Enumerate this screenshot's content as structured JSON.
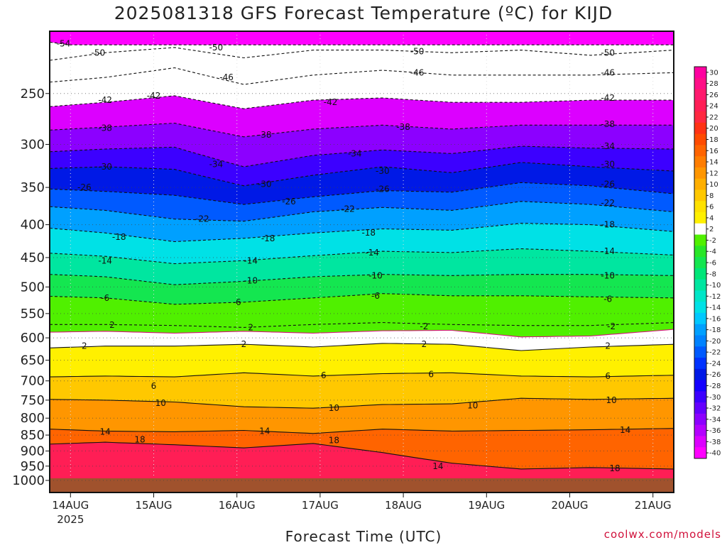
{
  "chart_data": {
    "type": "heatmap",
    "title": "2025081318 GFS Forecast Temperature (ºC) for KIJD",
    "xlabel": "Forecast Time (UTC)",
    "credit": "coolwx.com/models",
    "x_ticks": [
      "14AUG",
      "15AUG",
      "16AUG",
      "17AUG",
      "18AUG",
      "19AUG",
      "20AUG",
      "21AUG"
    ],
    "x_year": "2025",
    "x_range_hours": [
      -6,
      174
    ],
    "y_ticks": [
      250,
      300,
      350,
      400,
      450,
      500,
      550,
      600,
      650,
      700,
      750,
      800,
      850,
      900,
      950,
      1000
    ],
    "y_scale": "log pressure (hPa)",
    "y_range": [
      200,
      1000
    ],
    "grid": true,
    "colorbar_levels": [
      30,
      28,
      26,
      24,
      22,
      20,
      18,
      16,
      14,
      12,
      10,
      8,
      6,
      4,
      2,
      -2,
      -4,
      -6,
      -8,
      -10,
      -12,
      -14,
      -16,
      -18,
      -20,
      -22,
      -24,
      -26,
      -28,
      -30,
      -32,
      -34,
      -36,
      -38,
      -40
    ],
    "colorbar_colors": [
      "#ff00a0",
      "#ff0f87",
      "#ff1a6e",
      "#ff1e55",
      "#ff2841",
      "#ff3214",
      "#ff4b00",
      "#ff6400",
      "#ff7d00",
      "#ff9600",
      "#ffaf00",
      "#ffc800",
      "#ffe100",
      "#fff000",
      "#ffffff",
      "#50f000",
      "#28e628",
      "#14e650",
      "#00e678",
      "#00e6a0",
      "#00e6c8",
      "#00e1e6",
      "#00c8ff",
      "#00a0ff",
      "#0082ff",
      "#005aff",
      "#0032ff",
      "#0019e6",
      "#1400ff",
      "#3c00ff",
      "#6400ff",
      "#8c00ff",
      "#b400ff",
      "#dc00ff",
      "#ff00ff"
    ],
    "series": [
      {
        "level": -54,
        "x": [
          -6,
          0
        ],
        "y": [
          208,
          210
        ]
      },
      {
        "level": -50,
        "x": [
          -6,
          10,
          30,
          50,
          70,
          90,
          110,
          130,
          150,
          174
        ],
        "y": [
          222,
          216,
          212,
          220,
          214,
          214,
          216,
          214,
          218,
          214
        ]
      },
      {
        "level": -46,
        "x": [
          -6,
          10,
          30,
          50,
          70,
          90,
          110,
          130,
          150,
          174
        ],
        "y": [
          240,
          236,
          228,
          242,
          234,
          230,
          234,
          234,
          234,
          232
        ]
      },
      {
        "level": -42,
        "x": [
          -6,
          10,
          30,
          50,
          70,
          90,
          110,
          130,
          150,
          174
        ],
        "y": [
          262,
          258,
          252,
          264,
          256,
          254,
          258,
          258,
          256,
          256
        ]
      },
      {
        "level": -38,
        "x": [
          -6,
          10,
          30,
          50,
          70,
          90,
          110,
          130,
          150,
          174
        ],
        "y": [
          285,
          282,
          278,
          292,
          284,
          280,
          284,
          280,
          280,
          280
        ]
      },
      {
        "level": -34,
        "x": [
          -6,
          10,
          30,
          50,
          70,
          90,
          110,
          130,
          150,
          174
        ],
        "y": [
          308,
          305,
          303,
          325,
          312,
          306,
          310,
          302,
          304,
          305
        ]
      },
      {
        "level": -30,
        "x": [
          -6,
          10,
          30,
          50,
          70,
          90,
          110,
          130,
          150,
          174
        ],
        "y": [
          327,
          325,
          328,
          348,
          335,
          325,
          332,
          320,
          325,
          330
        ]
      },
      {
        "level": -26,
        "x": [
          -6,
          10,
          30,
          50,
          70,
          90,
          110,
          130,
          150,
          174
        ],
        "y": [
          352,
          355,
          360,
          372,
          362,
          354,
          356,
          344,
          348,
          358
        ]
      },
      {
        "level": -22,
        "x": [
          -6,
          10,
          30,
          50,
          70,
          90,
          110,
          130,
          150,
          174
        ],
        "y": [
          375,
          380,
          392,
          395,
          382,
          376,
          380,
          368,
          372,
          382
        ]
      },
      {
        "level": -18,
        "x": [
          -6,
          10,
          30,
          50,
          70,
          90,
          110,
          130,
          150,
          174
        ],
        "y": [
          405,
          412,
          425,
          420,
          412,
          406,
          408,
          398,
          400,
          410
        ]
      },
      {
        "level": -14,
        "x": [
          -6,
          10,
          30,
          50,
          70,
          90,
          110,
          130,
          150,
          174
        ],
        "y": [
          443,
          448,
          460,
          455,
          447,
          440,
          442,
          436,
          440,
          446
        ]
      },
      {
        "level": -10,
        "x": [
          -6,
          10,
          30,
          50,
          70,
          90,
          110,
          130,
          150,
          174
        ],
        "y": [
          478,
          482,
          496,
          490,
          482,
          478,
          480,
          478,
          478,
          480
        ]
      },
      {
        "level": -6,
        "x": [
          -6,
          10,
          30,
          50,
          70,
          90,
          110,
          130,
          150,
          174
        ],
        "y": [
          517,
          520,
          532,
          528,
          520,
          512,
          516,
          516,
          518,
          520
        ]
      },
      {
        "level": -2,
        "x": [
          -6,
          10,
          30,
          50,
          70,
          90,
          110,
          130,
          150,
          174
        ],
        "y": [
          572,
          572,
          574,
          578,
          572,
          568,
          572,
          574,
          574,
          568
        ]
      },
      {
        "level": 0,
        "x": [
          -6,
          10,
          30,
          50,
          70,
          90,
          110,
          130,
          150,
          174
        ],
        "y": [
          588,
          586,
          590,
          586,
          590,
          585,
          584,
          598,
          596,
          582
        ]
      },
      {
        "level": 2,
        "x": [
          -6,
          10,
          30,
          50,
          70,
          90,
          110,
          130,
          150,
          174
        ],
        "y": [
          622,
          618,
          618,
          614,
          620,
          612,
          614,
          628,
          620,
          614
        ]
      },
      {
        "level": 6,
        "x": [
          -6,
          10,
          30,
          50,
          70,
          90,
          110,
          130,
          150,
          174
        ],
        "y": [
          690,
          688,
          690,
          680,
          688,
          682,
          680,
          688,
          690,
          686
        ]
      },
      {
        "level": 10,
        "x": [
          -6,
          10,
          30,
          50,
          70,
          90,
          110,
          130,
          150,
          174
        ],
        "y": [
          748,
          750,
          755,
          768,
          772,
          762,
          760,
          745,
          748,
          745
        ]
      },
      {
        "level": 14,
        "x": [
          -6,
          10,
          30,
          50,
          70,
          90,
          110,
          130,
          150,
          174
        ],
        "y": [
          832,
          838,
          840,
          836,
          845,
          832,
          838,
          836,
          834,
          830
        ]
      },
      {
        "level": 18,
        "x": [
          -6,
          10,
          30,
          50,
          70,
          90,
          110,
          130,
          150,
          174
        ],
        "y": [
          878,
          872,
          880,
          890,
          876,
          905,
          940,
          960,
          955,
          960
        ]
      }
    ],
    "contour_labels": [
      {
        "text": "-54",
        "x": -2,
        "p": 209
      },
      {
        "text": "-50",
        "x": 8,
        "p": 216
      },
      {
        "text": "-50",
        "x": 42,
        "p": 212
      },
      {
        "text": "-50",
        "x": 100,
        "p": 215
      },
      {
        "text": "-50",
        "x": 155,
        "p": 216
      },
      {
        "text": "-46",
        "x": 45,
        "p": 236
      },
      {
        "text": "-46",
        "x": 100,
        "p": 232
      },
      {
        "text": "-46",
        "x": 155,
        "p": 232
      },
      {
        "text": "-42",
        "x": 10,
        "p": 256
      },
      {
        "text": "-42",
        "x": 24,
        "p": 252
      },
      {
        "text": "-42",
        "x": 75,
        "p": 258
      },
      {
        "text": "-42",
        "x": 155,
        "p": 254
      },
      {
        "text": "-38",
        "x": 10,
        "p": 283
      },
      {
        "text": "-38",
        "x": 56,
        "p": 290
      },
      {
        "text": "-38",
        "x": 96,
        "p": 282
      },
      {
        "text": "-38",
        "x": 155,
        "p": 279
      },
      {
        "text": "-34",
        "x": 42,
        "p": 322
      },
      {
        "text": "-34",
        "x": 82,
        "p": 310
      },
      {
        "text": "-34",
        "x": 155,
        "p": 302
      },
      {
        "text": "-30",
        "x": 10,
        "p": 325
      },
      {
        "text": "-30",
        "x": 56,
        "p": 346
      },
      {
        "text": "-30",
        "x": 90,
        "p": 330
      },
      {
        "text": "-30",
        "x": 155,
        "p": 322
      },
      {
        "text": "-26",
        "x": 4,
        "p": 350
      },
      {
        "text": "-26",
        "x": 63,
        "p": 368
      },
      {
        "text": "-26",
        "x": 90,
        "p": 352
      },
      {
        "text": "-26",
        "x": 155,
        "p": 346
      },
      {
        "text": "-22",
        "x": 38,
        "p": 392
      },
      {
        "text": "-22",
        "x": 80,
        "p": 378
      },
      {
        "text": "-22",
        "x": 155,
        "p": 370
      },
      {
        "text": "-18",
        "x": 14,
        "p": 418
      },
      {
        "text": "-18",
        "x": 57,
        "p": 420
      },
      {
        "text": "-18",
        "x": 86,
        "p": 412
      },
      {
        "text": "-18",
        "x": 155,
        "p": 400
      },
      {
        "text": "-14",
        "x": 10,
        "p": 455
      },
      {
        "text": "-14",
        "x": 52,
        "p": 455
      },
      {
        "text": "-14",
        "x": 87,
        "p": 442
      },
      {
        "text": "-14",
        "x": 155,
        "p": 440
      },
      {
        "text": "-10",
        "x": 52,
        "p": 489
      },
      {
        "text": "-10",
        "x": 88,
        "p": 480
      },
      {
        "text": "-10",
        "x": 155,
        "p": 480
      },
      {
        "text": "-6",
        "x": 10,
        "p": 520
      },
      {
        "text": "-6",
        "x": 48,
        "p": 528
      },
      {
        "text": "-6",
        "x": 88,
        "p": 516
      },
      {
        "text": "-6",
        "x": 155,
        "p": 522
      },
      {
        "text": "-2",
        "x": 102,
        "p": 576
      },
      {
        "text": "-2",
        "x": 156,
        "p": 576
      },
      {
        "text": "2",
        "x": 12,
        "p": 573
      },
      {
        "text": "2",
        "x": 52,
        "p": 578
      },
      {
        "text": "2",
        "x": 4,
        "p": 618
      },
      {
        "text": "2",
        "x": 50,
        "p": 614
      },
      {
        "text": "2",
        "x": 102,
        "p": 614
      },
      {
        "text": "2",
        "x": 155,
        "p": 618
      },
      {
        "text": "6",
        "x": 24,
        "p": 713
      },
      {
        "text": "6",
        "x": 73,
        "p": 686
      },
      {
        "text": "6",
        "x": 104,
        "p": 684
      },
      {
        "text": "6",
        "x": 155,
        "p": 688
      },
      {
        "text": "10",
        "x": 26,
        "p": 758
      },
      {
        "text": "10",
        "x": 76,
        "p": 772
      },
      {
        "text": "10",
        "x": 116,
        "p": 765
      },
      {
        "text": "10",
        "x": 156,
        "p": 750
      },
      {
        "text": "14",
        "x": 10,
        "p": 840
      },
      {
        "text": "14",
        "x": 56,
        "p": 838
      },
      {
        "text": "14",
        "x": 106,
        "p": 950
      },
      {
        "text": "14",
        "x": 160,
        "p": 835
      },
      {
        "text": "18",
        "x": 20,
        "p": 864
      },
      {
        "text": "18",
        "x": 76,
        "p": 866
      },
      {
        "text": "18",
        "x": 157,
        "p": 958
      }
    ]
  }
}
